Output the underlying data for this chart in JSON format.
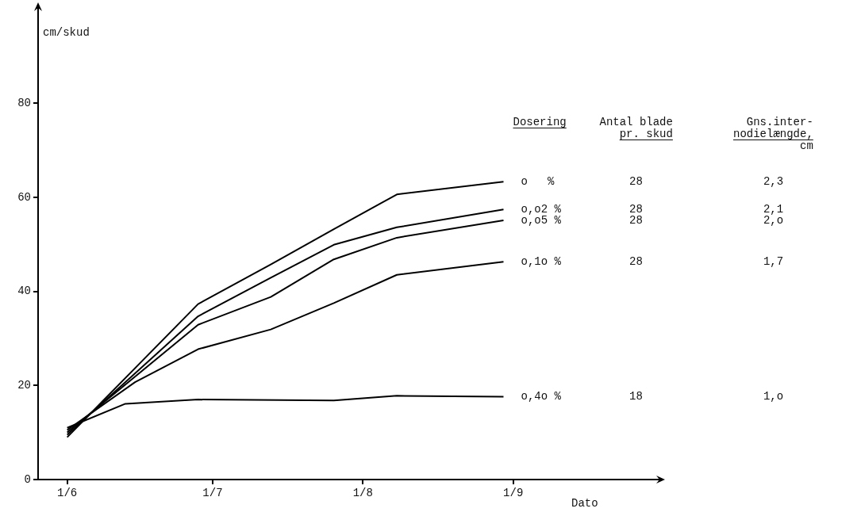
{
  "chart_data": {
    "type": "line",
    "xlabel": "Dato",
    "ylabel": "cm/skud",
    "legend_title": "Dosering",
    "annotations": [
      "Antal blade\npr. skud",
      "Gns.inter-\nnodielængde,\ncm",
      "28",
      "2,3",
      "28",
      "2,1",
      "28",
      "2,o",
      "28",
      "1,7",
      "18",
      "1,o"
    ],
    "xlim": [
      "--05-26",
      "--10-01"
    ],
    "xticks": [
      {
        "value": "--06-01",
        "label": "1/6"
      },
      {
        "value": "--07-01",
        "label": "1/7"
      },
      {
        "value": "--08-01",
        "label": "1/8"
      },
      {
        "value": "--09-01",
        "label": "1/9"
      }
    ],
    "ylim": [
      0,
      100
    ],
    "yticks": [
      0,
      20,
      40,
      60,
      80
    ],
    "grid": false,
    "legend": false,
    "marker": "none",
    "line_style": "solid",
    "series": [
      {
        "name": "o   %",
        "color": "#000000",
        "x": [
          "--06-01",
          "--06-28",
          "--07-13",
          "--07-26",
          "--08-08",
          "--08-30"
        ],
        "values": [
          9,
          37.3,
          45.7,
          53.2,
          60.6,
          63.3
        ]
      },
      {
        "name": "o,o2 %",
        "color": "#000000",
        "x": [
          "--06-01",
          "--06-28",
          "--07-13",
          "--07-26",
          "--08-08",
          "--08-30"
        ],
        "values": [
          9.5,
          34.7,
          42.9,
          49.9,
          53.6,
          57.4
        ]
      },
      {
        "name": "o,o5 %",
        "color": "#000000",
        "x": [
          "--06-01",
          "--06-28",
          "--07-13",
          "--07-26",
          "--08-08",
          "--08-30"
        ],
        "values": [
          10,
          32.9,
          38.8,
          46.8,
          51.4,
          55.1
        ]
      },
      {
        "name": "o,1o %",
        "color": "#000000",
        "x": [
          "--06-01",
          "--06-15",
          "--06-28",
          "--07-13",
          "--07-26",
          "--08-08",
          "--08-30"
        ],
        "values": [
          10.5,
          20.7,
          27.7,
          31.9,
          37.5,
          43.5,
          46.3
        ]
      },
      {
        "name": "o,4o %",
        "color": "#000000",
        "x": [
          "--06-01",
          "--06-13",
          "--06-28",
          "--07-26",
          "--08-08",
          "--08-30"
        ],
        "values": [
          11,
          16.1,
          17,
          16.8,
          17.8,
          17.6
        ]
      }
    ]
  }
}
